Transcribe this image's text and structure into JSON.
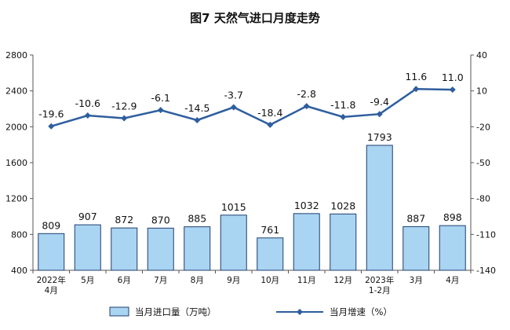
{
  "chart_data": {
    "type": "bar+line",
    "title": "图7  天然气进口月度走势",
    "categories": [
      [
        "2022年",
        "4月"
      ],
      [
        "5月"
      ],
      [
        "6月"
      ],
      [
        "7月"
      ],
      [
        "8月"
      ],
      [
        "9月"
      ],
      [
        "10月"
      ],
      [
        "11月"
      ],
      [
        "12月"
      ],
      [
        "2023年",
        "1-2月"
      ],
      [
        "3月"
      ],
      [
        "4月"
      ]
    ],
    "series": [
      {
        "name": "当月进口量（万吨）",
        "type": "bar",
        "axis": "left",
        "values": [
          809,
          907,
          872,
          870,
          885,
          1015,
          761,
          1032,
          1028,
          1793,
          887,
          898
        ],
        "labels": [
          "809",
          "907",
          "872",
          "870",
          "885",
          "1015",
          "761",
          "1032",
          "1028",
          "1793",
          "887",
          "898"
        ]
      },
      {
        "name": "当月增速（%）",
        "type": "line",
        "axis": "right",
        "values": [
          -19.6,
          -10.6,
          -12.9,
          -6.1,
          -14.5,
          -3.7,
          -18.4,
          -2.8,
          -11.8,
          -9.4,
          11.6,
          11.0
        ],
        "labels": [
          "-19.6",
          "-10.6",
          "-12.9",
          "-6.1",
          "-14.5",
          "-3.7",
          "-18.4",
          "-2.8",
          "-11.8",
          "-9.4",
          "11.6",
          "11.0"
        ]
      }
    ],
    "y_left": {
      "min": 400,
      "max": 2800,
      "ticks": [
        "400",
        "800",
        "1200",
        "1600",
        "2000",
        "2400",
        "2800"
      ]
    },
    "y_right": {
      "min": -140,
      "max": 40,
      "ticks": [
        "-140",
        "-110",
        "-80",
        "-50",
        "-20",
        "10",
        "40"
      ]
    },
    "grid": false,
    "legend_position": "bottom",
    "colors": {
      "bar_fill": "#a9d4f2",
      "bar_stroke": "#1f3f6e",
      "line": "#2e5e9e",
      "axis": "#555555"
    }
  }
}
